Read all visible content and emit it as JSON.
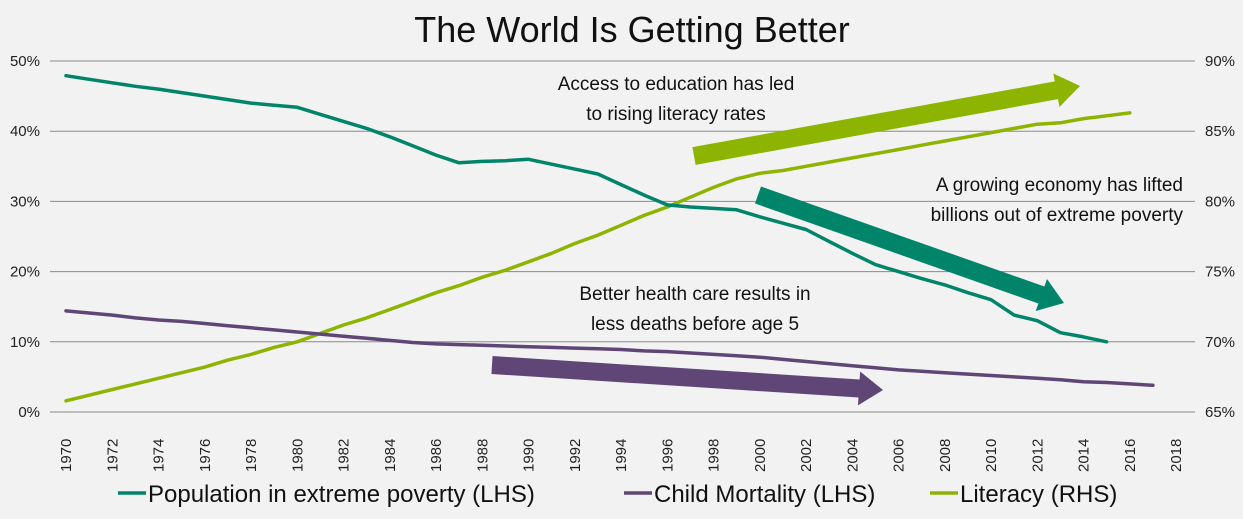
{
  "chart_data": {
    "type": "line",
    "title": "The World Is Getting Better",
    "xlabel": "",
    "ylabel_left": "",
    "ylabel_right": "",
    "x_ticks": [
      "1970",
      "1972",
      "1974",
      "1976",
      "1978",
      "1980",
      "1982",
      "1984",
      "1986",
      "1988",
      "1990",
      "1992",
      "1994",
      "1996",
      "1998",
      "2000",
      "2002",
      "2004",
      "2006",
      "2008",
      "2010",
      "2012",
      "2014",
      "2016",
      "2018"
    ],
    "xlim": [
      1970,
      2018
    ],
    "ylim_left": [
      0,
      50
    ],
    "ylim_right": [
      65,
      90
    ],
    "y_ticks_left": [
      "0%",
      "10%",
      "20%",
      "30%",
      "40%",
      "50%"
    ],
    "y_ticks_right": [
      "65%",
      "70%",
      "75%",
      "80%",
      "85%",
      "90%"
    ],
    "grid": true,
    "legend_position": "bottom",
    "series": [
      {
        "name": "Population in extreme poverty (LHS)",
        "axis": "left",
        "color": "#00856a",
        "x_start": 1970,
        "values": [
          47.9,
          47.4,
          46.9,
          46.4,
          46.0,
          45.5,
          45.0,
          44.5,
          44.0,
          43.7,
          43.4,
          42.4,
          41.4,
          40.4,
          39.2,
          37.9,
          36.6,
          35.5,
          35.7,
          35.8,
          36.0,
          35.3,
          34.6,
          33.9,
          32.4,
          30.9,
          29.5,
          29.2,
          29.0,
          28.8,
          27.8,
          26.9,
          26.0,
          24.3,
          22.6,
          21.0,
          20.0,
          19.0,
          18.1,
          17.0,
          16.0,
          13.8,
          13.0,
          11.3,
          10.7,
          10.0
        ]
      },
      {
        "name": "Child Mortality (LHS)",
        "axis": "left",
        "color": "#5f4677",
        "x_start": 1970,
        "values": [
          14.4,
          14.1,
          13.8,
          13.4,
          13.1,
          12.9,
          12.6,
          12.3,
          12.0,
          11.7,
          11.4,
          11.1,
          10.8,
          10.5,
          10.2,
          9.9,
          9.7,
          9.6,
          9.5,
          9.4,
          9.3,
          9.2,
          9.1,
          9.0,
          8.9,
          8.7,
          8.6,
          8.4,
          8.2,
          8.0,
          7.8,
          7.5,
          7.2,
          6.9,
          6.6,
          6.3,
          6.0,
          5.8,
          5.6,
          5.4,
          5.2,
          5.0,
          4.8,
          4.6,
          4.3,
          4.2,
          4.0,
          3.8
        ]
      },
      {
        "name": "Literacy (RHS)",
        "axis": "right",
        "color": "#8db400",
        "x_start": 1970,
        "values": [
          65.8,
          66.2,
          66.6,
          67.0,
          67.4,
          67.8,
          68.2,
          68.7,
          69.1,
          69.6,
          70.0,
          70.6,
          71.2,
          71.7,
          72.3,
          72.9,
          73.5,
          74.0,
          74.6,
          75.1,
          75.7,
          76.3,
          77.0,
          77.6,
          78.3,
          79.0,
          79.6,
          80.3,
          81.0,
          81.6,
          82.0,
          82.2,
          82.5,
          82.8,
          83.1,
          83.4,
          83.7,
          84.0,
          84.3,
          84.6,
          84.9,
          85.2,
          85.5,
          85.6,
          85.9,
          86.1,
          86.3
        ]
      }
    ],
    "annotations": [
      {
        "lines": [
          "Access to education has led",
          "to rising literacy rates"
        ],
        "series": "Literacy (RHS)"
      },
      {
        "lines": [
          "A growing economy has lifted",
          "billions out of extreme poverty"
        ],
        "series": "Population in extreme poverty (LHS)"
      },
      {
        "lines": [
          "Better health care results in",
          "less deaths before age 5"
        ],
        "series": "Child Mortality (LHS)"
      }
    ]
  }
}
